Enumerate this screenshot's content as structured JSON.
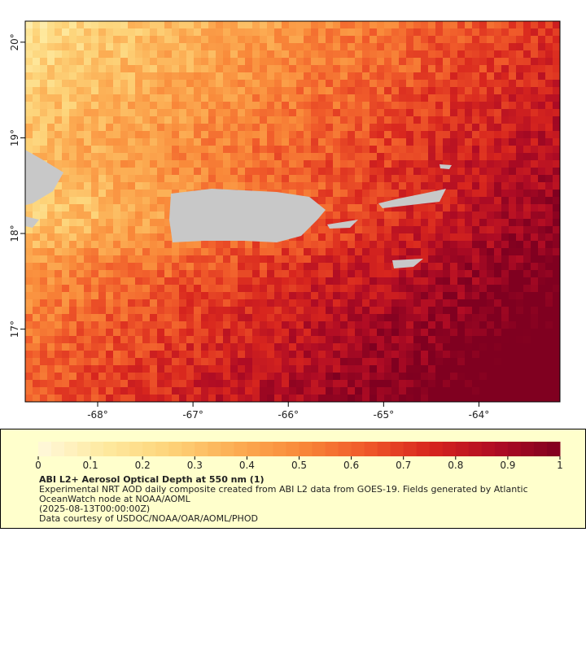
{
  "map": {
    "xlim": [
      -68.76,
      -63.15
    ],
    "ylim": [
      16.24,
      20.22
    ],
    "xticks": [
      {
        "value": -68,
        "label": "-68°"
      },
      {
        "value": -67,
        "label": "-67°"
      },
      {
        "value": -66,
        "label": "-66°"
      },
      {
        "value": -65,
        "label": "-65°"
      },
      {
        "value": -64,
        "label": "-64°"
      }
    ],
    "yticks": [
      {
        "value": 17,
        "label": "17°"
      },
      {
        "value": 18,
        "label": "18°"
      },
      {
        "value": 19,
        "label": "19°"
      },
      {
        "value": 20,
        "label": "20°"
      }
    ]
  },
  "colorbar": {
    "ticks": [
      0,
      0.1,
      0.2,
      0.3,
      0.4,
      0.5,
      0.6,
      0.7,
      0.8,
      0.9,
      1
    ],
    "colors": [
      "#fff8dc",
      "#feeaa0",
      "#fdd47a",
      "#fcae54",
      "#f98a3a",
      "#f05a2a",
      "#d8261e",
      "#b00c24",
      "#800020"
    ]
  },
  "legend": {
    "title": "ABI L2+ Aerosol Optical Depth at 550 nm (1)",
    "lines": [
      "Experimental NRT AOD daily composite created from ABI L2 data from GOES-19. Fields generated by Atlantic",
      "OceanWatch node at NOAA/AOML",
      "(2025-08-13T00:00:00Z)",
      "Data courtesy of USDOC/NOAA/OAR/AOML/PHOD"
    ]
  }
}
